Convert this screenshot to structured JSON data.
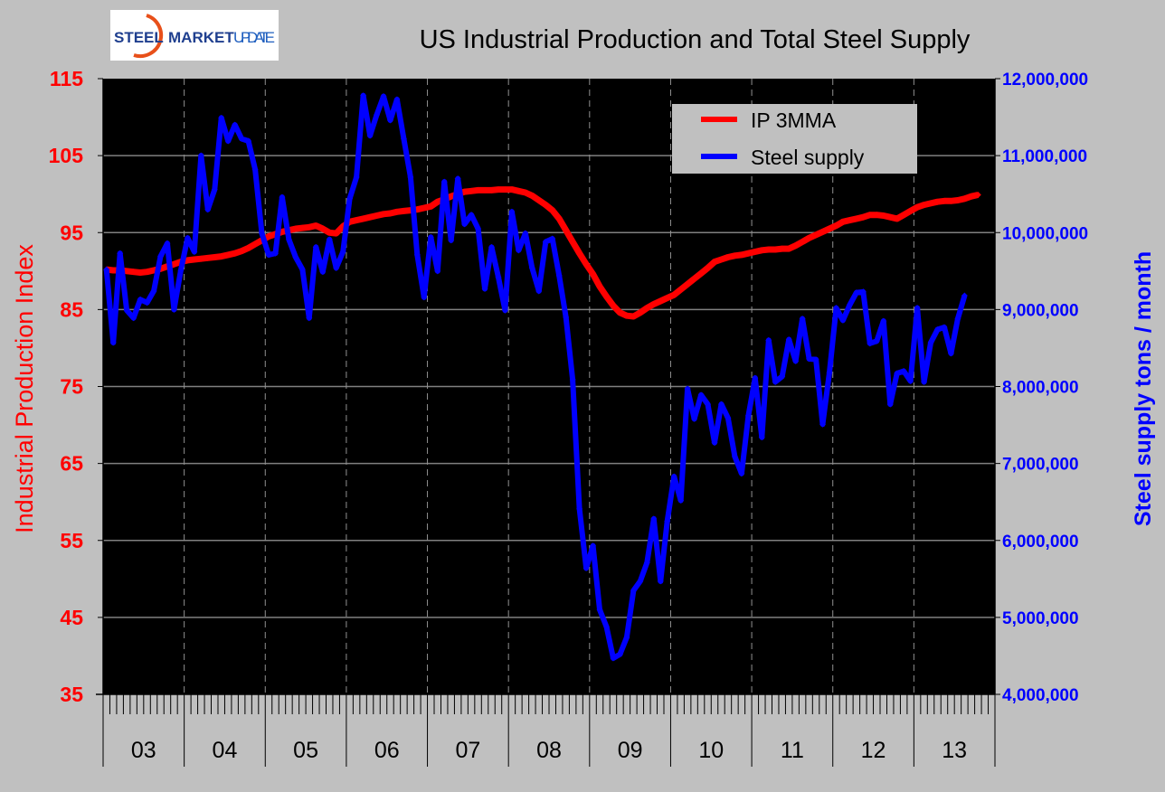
{
  "logo": {
    "text": "STEEL MARKET UPDATE"
  },
  "colors": {
    "ip": "#ff0000",
    "steel": "#0000ff",
    "plot_bg": "#000000",
    "page_bg": "#c0c0c0",
    "grid": "#808080"
  },
  "chart_data": {
    "type": "line",
    "title": "US Industrial Production and Total Steel Supply",
    "xlabel": "",
    "ylabel": "Industrial Production Index",
    "y2label": "Steel supply tons / month",
    "x_tick_labels": [
      "03",
      "04",
      "05",
      "06",
      "07",
      "08",
      "09",
      "10",
      "11",
      "12",
      "13"
    ],
    "x_start": "2003-01",
    "frequency": "monthly",
    "ylim": [
      35,
      115
    ],
    "y_ticks": [
      35,
      45,
      55,
      65,
      75,
      85,
      95,
      105,
      115
    ],
    "y2lim": [
      4000000,
      12000000
    ],
    "y2_ticks": [
      "4,000,000",
      "5,000,000",
      "6,000,000",
      "7,000,000",
      "8,000,000",
      "9,000,000",
      "10,000,000",
      "11,000,000",
      "12,000,000"
    ],
    "grid": true,
    "legend_position": "top-right",
    "series": [
      {
        "name": "IP 3MMA",
        "axis": "left",
        "color": "#ff0000",
        "values": [
          90.2,
          90.1,
          90.1,
          90.0,
          89.9,
          89.8,
          89.9,
          90.1,
          90.3,
          90.6,
          90.9,
          91.2,
          91.4,
          91.5,
          91.6,
          91.7,
          91.8,
          91.9,
          92.1,
          92.3,
          92.6,
          93.0,
          93.5,
          94.0,
          94.5,
          94.8,
          95.1,
          95.3,
          95.5,
          95.6,
          95.7,
          95.9,
          95.5,
          95.0,
          94.9,
          95.8,
          96.4,
          96.6,
          96.8,
          97.0,
          97.2,
          97.4,
          97.5,
          97.7,
          97.8,
          97.9,
          98.0,
          98.2,
          98.4,
          99.0,
          99.3,
          99.7,
          100.0,
          100.3,
          100.4,
          100.5,
          100.5,
          100.5,
          100.6,
          100.6,
          100.6,
          100.4,
          100.2,
          99.8,
          99.2,
          98.6,
          97.9,
          96.8,
          95.3,
          93.8,
          92.3,
          90.9,
          89.6,
          88.0,
          86.7,
          85.5,
          84.6,
          84.2,
          84.1,
          84.6,
          85.2,
          85.7,
          86.1,
          86.5,
          86.9,
          87.6,
          88.3,
          89.0,
          89.7,
          90.4,
          91.2,
          91.5,
          91.8,
          92.0,
          92.1,
          92.3,
          92.5,
          92.7,
          92.8,
          92.8,
          92.9,
          92.9,
          93.3,
          93.8,
          94.3,
          94.7,
          95.1,
          95.5,
          95.9,
          96.4,
          96.6,
          96.8,
          97.0,
          97.3,
          97.3,
          97.2,
          97.0,
          96.8,
          97.3,
          97.8,
          98.3,
          98.6,
          98.8,
          99.0,
          99.1,
          99.1,
          99.2,
          99.4,
          99.7,
          99.9
        ]
      },
      {
        "name": "Steel supply",
        "axis": "right",
        "color": "#0000ff",
        "values": [
          9520000,
          8570000,
          9730000,
          8990000,
          8890000,
          9130000,
          9090000,
          9240000,
          9690000,
          9860000,
          9000000,
          9510000,
          9930000,
          9750000,
          11000000,
          10300000,
          10560000,
          11490000,
          11190000,
          11400000,
          11220000,
          11190000,
          10820000,
          9990000,
          9710000,
          9730000,
          10460000,
          9910000,
          9680000,
          9520000,
          8890000,
          9810000,
          9490000,
          9910000,
          9540000,
          9750000,
          10440000,
          10720000,
          11780000,
          11260000,
          11530000,
          11770000,
          11460000,
          11730000,
          11220000,
          10720000,
          9710000,
          9160000,
          9940000,
          9500000,
          10660000,
          9900000,
          10700000,
          10110000,
          10230000,
          10050000,
          9270000,
          9810000,
          9420000,
          8990000,
          10270000,
          9770000,
          9990000,
          9540000,
          9240000,
          9880000,
          9920000,
          9440000,
          8900000,
          8090000,
          6410000,
          5640000,
          5930000,
          5100000,
          4880000,
          4470000,
          4520000,
          4740000,
          5350000,
          5470000,
          5710000,
          6280000,
          5470000,
          6250000,
          6830000,
          6520000,
          7970000,
          7580000,
          7890000,
          7770000,
          7270000,
          7770000,
          7590000,
          7090000,
          6870000,
          7620000,
          8110000,
          7340000,
          8600000,
          8060000,
          8130000,
          8610000,
          8330000,
          8880000,
          8360000,
          8350000,
          7510000,
          8180000,
          9020000,
          8860000,
          9060000,
          9220000,
          9230000,
          8560000,
          8590000,
          8850000,
          7770000,
          8170000,
          8200000,
          8070000,
          9020000,
          8060000,
          8570000,
          8740000,
          8770000,
          8430000,
          8880000,
          9180000
        ]
      }
    ]
  }
}
